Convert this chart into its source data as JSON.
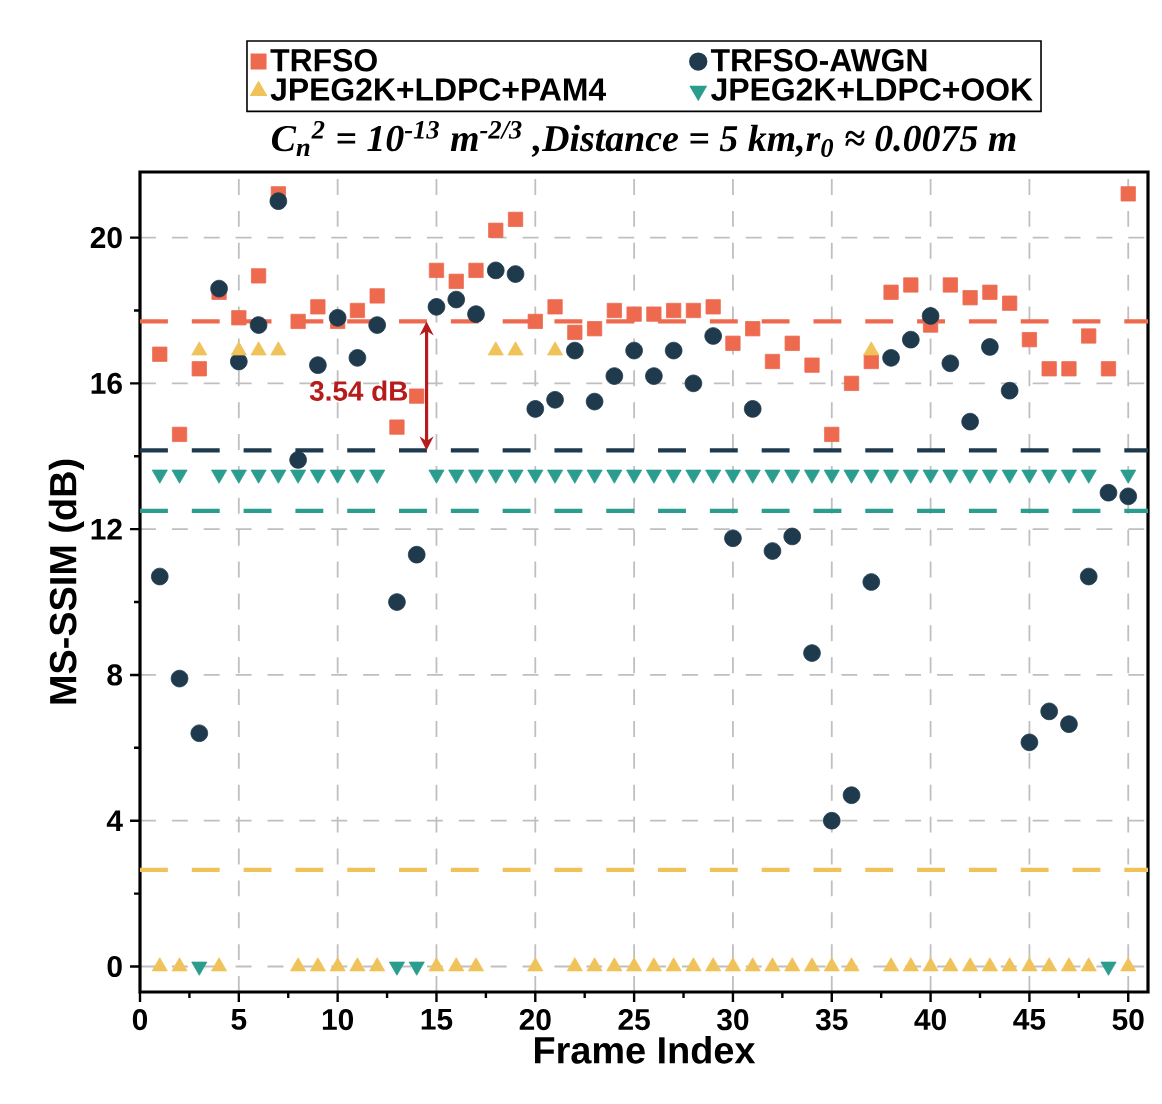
{
  "chart_data": {
    "type": "scatter",
    "title": "C$_{n}$$^{2}$ = 10$^{-13}$ m$^{-2/3}$ ,Distance = 5 km,r$_{0}$ ≈ 0.0075 m",
    "xlabel": "Frame Index",
    "ylabel": "MS-SSIM (dB)",
    "x": [
      1,
      2,
      3,
      4,
      5,
      6,
      7,
      8,
      9,
      10,
      11,
      12,
      13,
      14,
      15,
      16,
      17,
      18,
      19,
      20,
      21,
      22,
      23,
      24,
      25,
      26,
      27,
      28,
      29,
      30,
      31,
      32,
      33,
      34,
      35,
      36,
      37,
      38,
      39,
      40,
      41,
      42,
      43,
      44,
      45,
      46,
      47,
      48,
      49,
      50
    ],
    "series": [
      {
        "name": "TRFSO",
        "color": "#ee6a4f",
        "marker": "square",
        "values": [
          16.8,
          14.6,
          16.4,
          18.5,
          17.8,
          18.95,
          21.2,
          17.7,
          18.1,
          17.7,
          18.0,
          18.4,
          14.8,
          15.65,
          19.1,
          18.8,
          19.1,
          20.2,
          20.5,
          17.7,
          18.1,
          17.4,
          17.5,
          18.0,
          17.9,
          17.9,
          18.0,
          18.0,
          18.1,
          17.1,
          17.5,
          16.6,
          17.1,
          16.5,
          14.6,
          16.0,
          16.6,
          18.5,
          18.7,
          17.6,
          18.7,
          18.35,
          18.5,
          18.2,
          17.2,
          16.4,
          16.4,
          17.3,
          16.4,
          21.2
        ]
      },
      {
        "name": "TRFSO-AWGN",
        "color": "#1f3a4d",
        "marker": "circle",
        "values": [
          10.7,
          7.9,
          6.4,
          18.6,
          16.6,
          17.6,
          21.0,
          13.9,
          16.5,
          17.8,
          16.7,
          17.6,
          10.0,
          11.3,
          18.1,
          18.3,
          17.9,
          19.1,
          19.0,
          15.3,
          15.55,
          16.9,
          15.5,
          16.2,
          16.9,
          16.2,
          16.9,
          16.0,
          17.3,
          11.75,
          15.3,
          11.4,
          11.8,
          8.6,
          4.0,
          4.7,
          10.55,
          16.7,
          17.2,
          17.85,
          16.55,
          14.95,
          17.0,
          15.8,
          6.15,
          7.0,
          6.65,
          10.7,
          13.0,
          12.9
        ]
      },
      {
        "name": "JPEG2K+LDPC+PAM4",
        "color": "#f0c35a",
        "marker": "triangle",
        "values": [
          0,
          0,
          16.9,
          0,
          16.9,
          16.9,
          16.9,
          0,
          0,
          0,
          0,
          0,
          null,
          null,
          0,
          0,
          0,
          16.9,
          16.9,
          0,
          16.9,
          0,
          0,
          0,
          0,
          0,
          0,
          0,
          0,
          0,
          0,
          0,
          0,
          0,
          0,
          0,
          16.9,
          0,
          0,
          0,
          0,
          0,
          0,
          0,
          0,
          0,
          0,
          0,
          null,
          0
        ]
      },
      {
        "name": "JPEG2K+LDPC+OOK",
        "color": "#2a9d8f",
        "marker": "triangle_down",
        "values": [
          13.5,
          13.5,
          0,
          13.5,
          13.5,
          13.5,
          13.5,
          13.5,
          13.5,
          13.5,
          13.5,
          13.5,
          0,
          0,
          13.5,
          13.5,
          13.5,
          13.5,
          13.5,
          13.5,
          13.5,
          13.5,
          13.5,
          13.5,
          13.5,
          13.5,
          13.5,
          13.5,
          13.5,
          13.5,
          13.5,
          13.5,
          13.5,
          13.5,
          13.5,
          13.5,
          13.5,
          13.5,
          13.5,
          13.5,
          13.5,
          13.5,
          13.5,
          13.5,
          13.5,
          13.5,
          13.5,
          13.5,
          0,
          13.5
        ]
      }
    ],
    "xlim": [
      0,
      51
    ],
    "ylim": [
      -0.7,
      21.8
    ],
    "xticks": [
      0,
      {
        "value": 2.5,
        "label": null
      },
      5,
      {
        "value": 7.5,
        "label": null
      },
      10,
      {
        "value": 12.5,
        "label": null
      },
      15,
      {
        "value": 17.5,
        "label": null
      },
      20,
      {
        "value": 22.5,
        "label": null
      },
      25,
      {
        "value": 27.5,
        "label": null
      },
      30,
      {
        "value": 32.5,
        "label": null
      },
      35,
      {
        "value": 37.5,
        "label": null
      },
      40,
      {
        "value": 42.5,
        "label": null
      },
      45,
      {
        "value": 47.5,
        "label": null
      },
      50
    ],
    "yticks": [
      0,
      {
        "value": 2,
        "label": null
      },
      4,
      {
        "value": 6,
        "label": null
      },
      8,
      {
        "value": 10,
        "label": null
      },
      12,
      {
        "value": 14,
        "label": null
      },
      16,
      {
        "value": 18,
        "label": null
      },
      20
    ],
    "grid": true,
    "legend": "top",
    "ref_lines": [
      {
        "axis": "y",
        "value": 17.7,
        "color": "#ee6a4f",
        "line_style": "dashed"
      },
      {
        "axis": "y",
        "value": 14.16,
        "color": "#1f3a4d",
        "line_style": "dashed"
      },
      {
        "axis": "y",
        "value": 12.5,
        "color": "#2a9d8f",
        "line_style": "dashed"
      },
      {
        "axis": "y",
        "value": 2.65,
        "color": "#f0c35a",
        "line_style": "dashed"
      }
    ],
    "annotations": [
      {
        "text": "3.54 dB",
        "x": 14.5,
        "y": 15.8
      }
    ]
  }
}
